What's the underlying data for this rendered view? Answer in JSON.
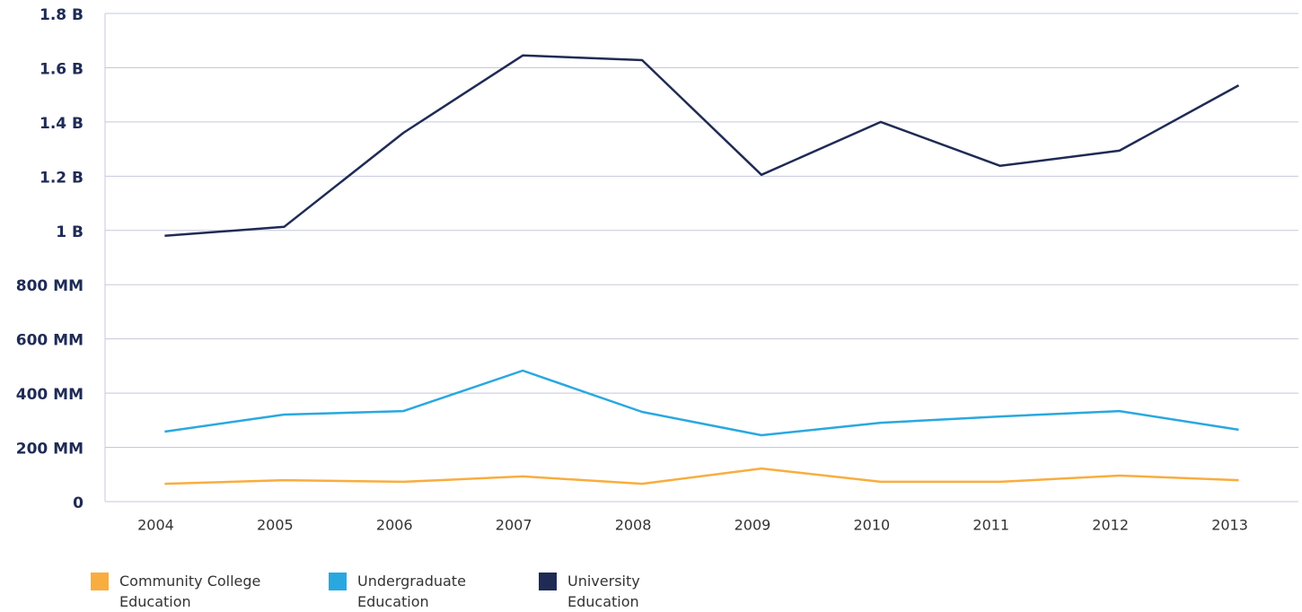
{
  "chart_data": {
    "type": "line",
    "categories": [
      "2004",
      "2005",
      "2006",
      "2007",
      "2008",
      "2009",
      "2010",
      "2011",
      "2012",
      "2013"
    ],
    "series": [
      {
        "name": "Community College Education",
        "color": "#f9ad3f",
        "values": [
          66,
          79,
          73,
          93,
          66,
          122,
          73,
          73,
          96,
          79
        ]
      },
      {
        "name": "Undergraduate Education",
        "color": "#29a8e0",
        "values": [
          258,
          321,
          334,
          483,
          331,
          245,
          291,
          314,
          334,
          265
        ]
      },
      {
        "name": "University Education",
        "color": "#1f2b55",
        "values": [
          980,
          1013,
          1360,
          1645,
          1628,
          1205,
          1400,
          1238,
          1294,
          1535
        ]
      }
    ],
    "ylim": [
      0,
      1800
    ],
    "yticks": [
      0,
      {
        "value": 200,
        "label": "200 MM"
      },
      {
        "value": 400,
        "label": "400 MM"
      },
      {
        "value": 600,
        "label": "600 MM"
      },
      {
        "value": 800,
        "label": "800 MM"
      },
      {
        "value": 1000,
        "label": "1 B"
      },
      {
        "value": 1200,
        "label": "1.2 B"
      },
      {
        "value": 1400,
        "label": "1.4 B"
      },
      {
        "value": 1600,
        "label": "1.6 B"
      },
      {
        "value": 1800,
        "label": "1.8 B"
      }
    ],
    "grid": true,
    "legend": "bottom"
  }
}
